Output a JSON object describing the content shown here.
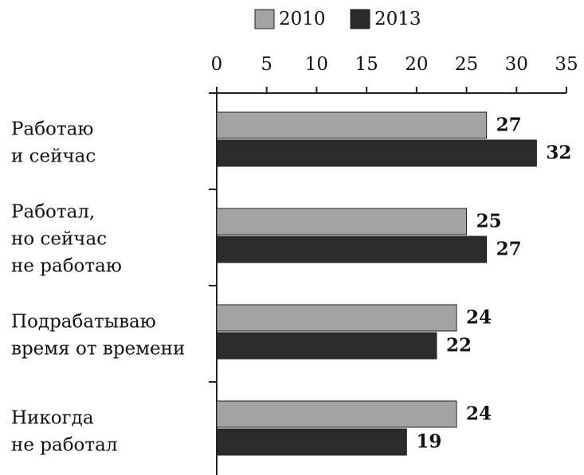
{
  "chart_data": {
    "type": "bar",
    "orientation": "horizontal",
    "categories": [
      [
        "Работаю",
        "и сейчас"
      ],
      [
        "Работал,",
        "но сейчас",
        "не работаю"
      ],
      [
        "Подрабатываю",
        "время от времени"
      ],
      [
        "Никогда",
        "не работал"
      ]
    ],
    "series": [
      {
        "name": "2010",
        "color": "#a3a3a3",
        "values": [
          27,
          25,
          24,
          24
        ]
      },
      {
        "name": "2013",
        "color": "#2b2b2b",
        "values": [
          32,
          27,
          22,
          19
        ]
      }
    ],
    "xlim": [
      0,
      35
    ],
    "xticks": [
      0,
      5,
      10,
      15,
      20,
      25,
      30,
      35
    ],
    "legend": "top"
  }
}
